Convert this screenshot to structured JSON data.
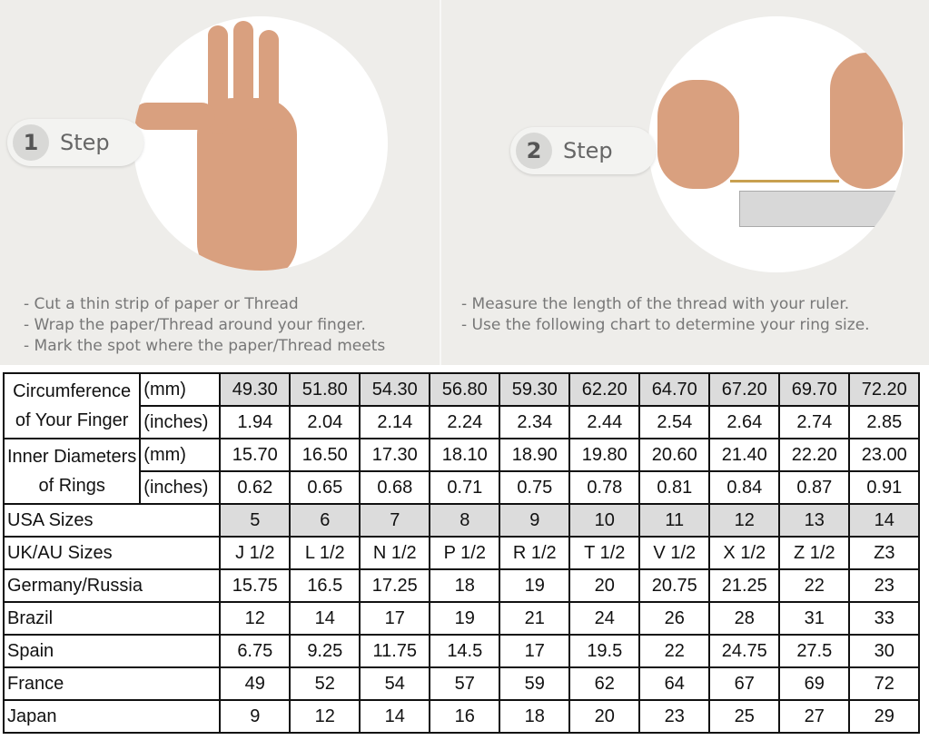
{
  "step1": {
    "num": "1",
    "label": "Step",
    "bullets": [
      "- Cut a thin strip of paper or Thread",
      "- Wrap the paper/Thread around your finger.",
      "- Mark the spot where the paper/Thread meets"
    ]
  },
  "step2": {
    "num": "2",
    "label": "Step",
    "bullets": [
      "- Measure the length of the thread with your ruler.",
      "- Use the following chart to determine your ring size."
    ]
  },
  "table": {
    "circumference": {
      "label": [
        "Circumference",
        "of Your Finger"
      ],
      "mm_label": "(mm)",
      "in_label": "(inches)",
      "mm": [
        "49.30",
        "51.80",
        "54.30",
        "56.80",
        "59.30",
        "62.20",
        "64.70",
        "67.20",
        "69.70",
        "72.20"
      ],
      "inches": [
        "1.94",
        "2.04",
        "2.14",
        "2.24",
        "2.34",
        "2.44",
        "2.54",
        "2.64",
        "2.74",
        "2.85"
      ]
    },
    "diameter": {
      "label": [
        "Inner Diameters",
        "of Rings"
      ],
      "mm_label": "(mm)",
      "in_label": "(inches)",
      "mm": [
        "15.70",
        "16.50",
        "17.30",
        "18.10",
        "18.90",
        "19.80",
        "20.60",
        "21.40",
        "22.20",
        "23.00"
      ],
      "inches": [
        "0.62",
        "0.65",
        "0.68",
        "0.71",
        "0.75",
        "0.78",
        "0.81",
        "0.84",
        "0.87",
        "0.91"
      ]
    },
    "rows": [
      {
        "label": "USA Sizes",
        "values": [
          "5",
          "6",
          "7",
          "8",
          "9",
          "10",
          "11",
          "12",
          "13",
          "14"
        ]
      },
      {
        "label": "UK/AU Sizes",
        "values": [
          "J 1/2",
          "L 1/2",
          "N 1/2",
          "P 1/2",
          "R 1/2",
          "T 1/2",
          "V 1/2",
          "X 1/2",
          "Z 1/2",
          "Z3"
        ]
      },
      {
        "label": "Germany/Russia",
        "values": [
          "15.75",
          "16.5",
          "17.25",
          "18",
          "19",
          "20",
          "20.75",
          "21.25",
          "22",
          "23"
        ]
      },
      {
        "label": "Brazil",
        "values": [
          "12",
          "14",
          "17",
          "19",
          "21",
          "24",
          "26",
          "28",
          "31",
          "33"
        ]
      },
      {
        "label": "Spain",
        "values": [
          "6.75",
          "9.25",
          "11.75",
          "14.5",
          "17",
          "19.5",
          "22",
          "24.75",
          "27.5",
          "30"
        ]
      },
      {
        "label": "France",
        "values": [
          "49",
          "52",
          "54",
          "57",
          "59",
          "62",
          "64",
          "67",
          "69",
          "72"
        ]
      },
      {
        "label": "Japan",
        "values": [
          "9",
          "12",
          "14",
          "16",
          "18",
          "20",
          "23",
          "25",
          "27",
          "29"
        ]
      }
    ]
  }
}
